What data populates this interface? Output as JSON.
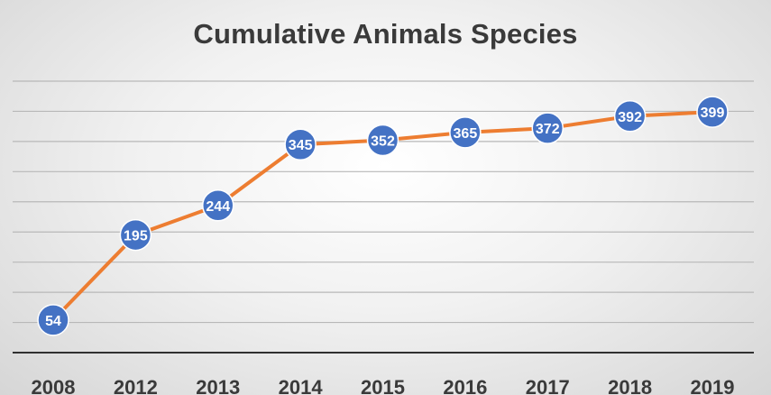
{
  "chart_data": {
    "type": "line",
    "title": "Cumulative Animals Species",
    "categories": [
      "2008",
      "2012",
      "2013",
      "2014",
      "2015",
      "2016",
      "2017",
      "2018",
      "2019"
    ],
    "series": [
      {
        "values": [
          54,
          195,
          244,
          345,
          352,
          365,
          372,
          392,
          399
        ]
      }
    ],
    "ylim": [
      0,
      450
    ],
    "grid": true,
    "data_labels": true,
    "legend": "none",
    "colors": {
      "line": "#ED7D31",
      "marker": "#4472C4",
      "label_text": "#FFFFFF"
    }
  }
}
